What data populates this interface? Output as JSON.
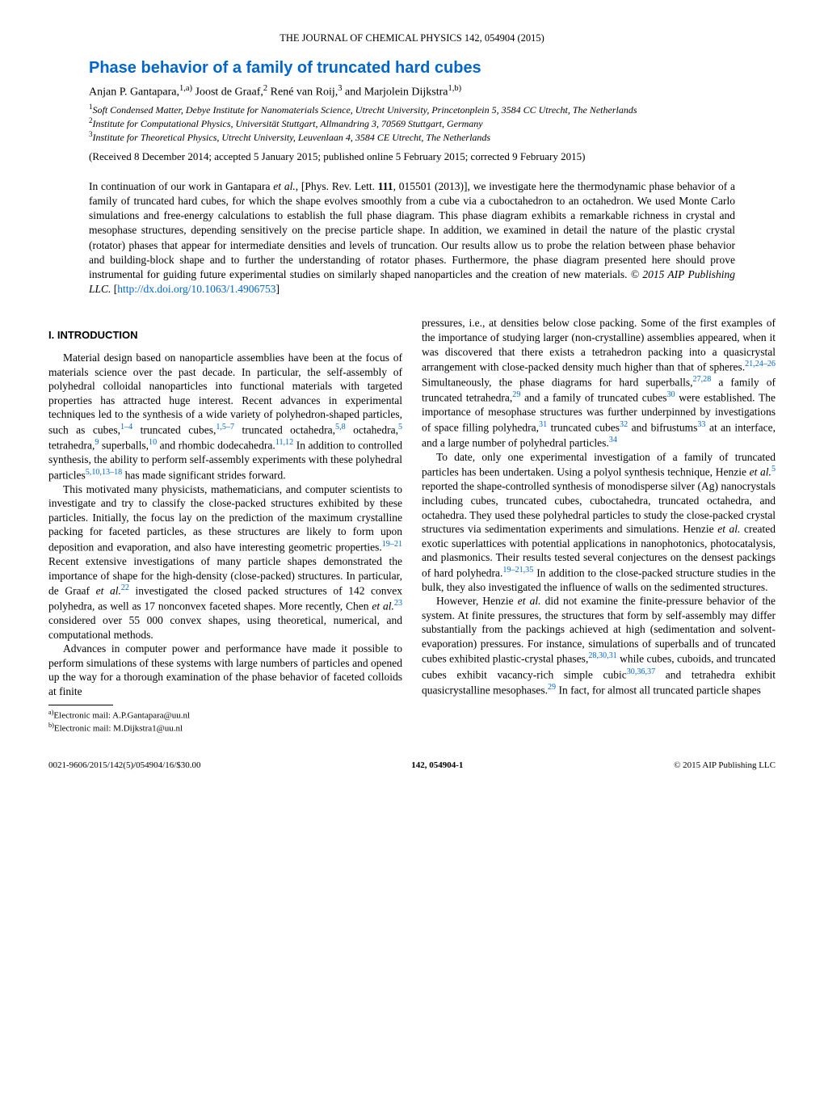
{
  "journal_header": "THE JOURNAL OF CHEMICAL PHYSICS 142, 054904 (2015)",
  "title": "Phase behavior of a family of truncated hard cubes",
  "authors_html": "Anjan P. Gantapara,<sup>1,a)</sup> Joost de Graaf,<sup>2</sup> René van Roij,<sup>3</sup> and Marjolein Dijkstra<sup>1,b)</sup>",
  "affiliations": [
    "<sup>1</sup>Soft Condensed Matter, Debye Institute for Nanomaterials Science, Utrecht University, Princetonplein 5, 3584 CC Utrecht, The Netherlands",
    "<sup>2</sup>Institute for Computational Physics, Universität Stuttgart, Allmandring 3, 70569 Stuttgart, Germany",
    "<sup>3</sup>Institute for Theoretical Physics, Utrecht University, Leuvenlaan 4, 3584 CE Utrecht, The Netherlands"
  ],
  "dates": "(Received 8 December 2014; accepted 5 January 2015; published online 5 February 2015; corrected 9 February 2015)",
  "abstract_html": "In continuation of our work in Gantapara <i>et al.</i>, [Phys. Rev. Lett. <b>111</b>, 015501 (2013)], we investigate here the thermodynamic phase behavior of a family of truncated hard cubes, for which the shape evolves smoothly from a cube via a cuboctahedron to an octahedron. We used Monte Carlo simulations and free-energy calculations to establish the full phase diagram. This phase diagram exhibits a remarkable richness in crystal and mesophase structures, depending sensitively on the precise particle shape. In addition, we examined in detail the nature of the plastic crystal (rotator) phases that appear for intermediate densities and levels of truncation. Our results allow us to probe the relation between phase behavior and building-block shape and to further the understanding of rotator phases. Furthermore, the phase diagram presented here should prove instrumental for guiding future experimental studies on similarly shaped nanoparticles and the creation of new materials. <i>© 2015 AIP Publishing LLC.</i> [<span class=\"doi-link\">http://dx.doi.org/10.1063/1.4906753</span>]",
  "section1_heading": "I. INTRODUCTION",
  "body_paragraphs": [
    "Material design based on nanoparticle assemblies have been at the focus of materials science over the past decade. In particular, the self-assembly of polyhedral colloidal nanoparticles into functional materials with targeted properties has attracted huge interest. Recent advances in experimental techniques led to the synthesis of a wide variety of polyhedron-shaped particles, such as cubes,<sup class=\"ref-link\">1–4</sup> truncated cubes,<sup class=\"ref-link\">1,5–7</sup> truncated octahedra,<sup class=\"ref-link\">5,8</sup> octahedra,<sup class=\"ref-link\">5</sup> tetrahedra,<sup class=\"ref-link\">9</sup> superballs,<sup class=\"ref-link\">10</sup> and rhombic dodecahedra.<sup class=\"ref-link\">11,12</sup> In addition to controlled synthesis, the ability to perform self-assembly experiments with these polyhedral particles<sup class=\"ref-link\">5,10,13–18</sup> has made significant strides forward.",
    "This motivated many physicists, mathematicians, and computer scientists to investigate and try to classify the close-packed structures exhibited by these particles. Initially, the focus lay on the prediction of the maximum crystalline packing for faceted particles, as these structures are likely to form upon deposition and evaporation, and also have interesting geometric properties.<sup class=\"ref-link\">19–21</sup> Recent extensive investigations of many particle shapes demonstrated the importance of shape for the high-density (close-packed) structures. In particular, de Graaf <i>et al.</i><sup class=\"ref-link\">22</sup> investigated the closed packed structures of 142 convex polyhedra, as well as 17 nonconvex faceted shapes. More recently, Chen <i>et al.</i><sup class=\"ref-link\">23</sup> considered over 55 000 convex shapes, using theoretical, numerical, and computational methods.",
    "Advances in computer power and performance have made it possible to perform simulations of these systems with large numbers of particles and opened up the way for a thorough examination of the phase behavior of faceted colloids at finite",
    "pressures, i.e., at densities below close packing. Some of the first examples of the importance of studying larger (non-crystalline) assemblies appeared, when it was discovered that there exists a tetrahedron packing into a quasicrystal arrangement with close-packed density much higher than that of spheres.<sup class=\"ref-link\">21,24–26</sup> Simultaneously, the phase diagrams for hard superballs,<sup class=\"ref-link\">27,28</sup> a family of truncated tetrahedra,<sup class=\"ref-link\">29</sup> and a family of truncated cubes<sup class=\"ref-link\">30</sup> were established. The importance of mesophase structures was further underpinned by investigations of space filling polyhedra,<sup class=\"ref-link\">31</sup> truncated cubes<sup class=\"ref-link\">32</sup> and bifrustums<sup class=\"ref-link\">33</sup> at an interface, and a large number of polyhedral particles.<sup class=\"ref-link\">34</sup>",
    "To date, only one experimental investigation of a family of truncated particles has been undertaken. Using a polyol synthesis technique, Henzie <i>et al.</i><sup class=\"ref-link\">5</sup> reported the shape-controlled synthesis of monodisperse silver (Ag) nanocrystals including cubes, truncated cubes, cuboctahedra, truncated octahedra, and octahedra. They used these polyhedral particles to study the close-packed crystal structures via sedimentation experiments and simulations. Henzie <i>et al.</i> created exotic superlattices with potential applications in nanophotonics, photocatalysis, and plasmonics. Their results tested several conjectures on the densest packings of hard polyhedra.<sup class=\"ref-link\">19–21,35</sup> In addition to the close-packed structure studies in the bulk, they also investigated the influence of walls on the sedimented structures.",
    "However, Henzie <i>et al.</i> did not examine the finite-pressure behavior of the system. At finite pressures, the structures that form by self-assembly may differ substantially from the packings achieved at high (sedimentation and solvent-evaporation) pressures. For instance, simulations of superballs and of truncated cubes exhibited plastic-crystal phases,<sup class=\"ref-link\">28,30,31</sup> while cubes, cuboids, and truncated cubes exhibit vacancy-rich simple cubic<sup class=\"ref-link\">30,36,37</sup> and tetrahedra exhibit quasicrystalline mesophases.<sup class=\"ref-link\">29</sup> In fact, for almost all truncated particle shapes"
  ],
  "footnotes": [
    "<sup>a)</sup>Electronic mail: A.P.Gantapara@uu.nl",
    "<sup>b)</sup>Electronic mail: M.Dijkstra1@uu.nl"
  ],
  "footer": {
    "left": "0021-9606/2015/142(5)/054904/16/$30.00",
    "center": "142, 054904-1",
    "right": "© 2015 AIP Publishing LLC"
  }
}
